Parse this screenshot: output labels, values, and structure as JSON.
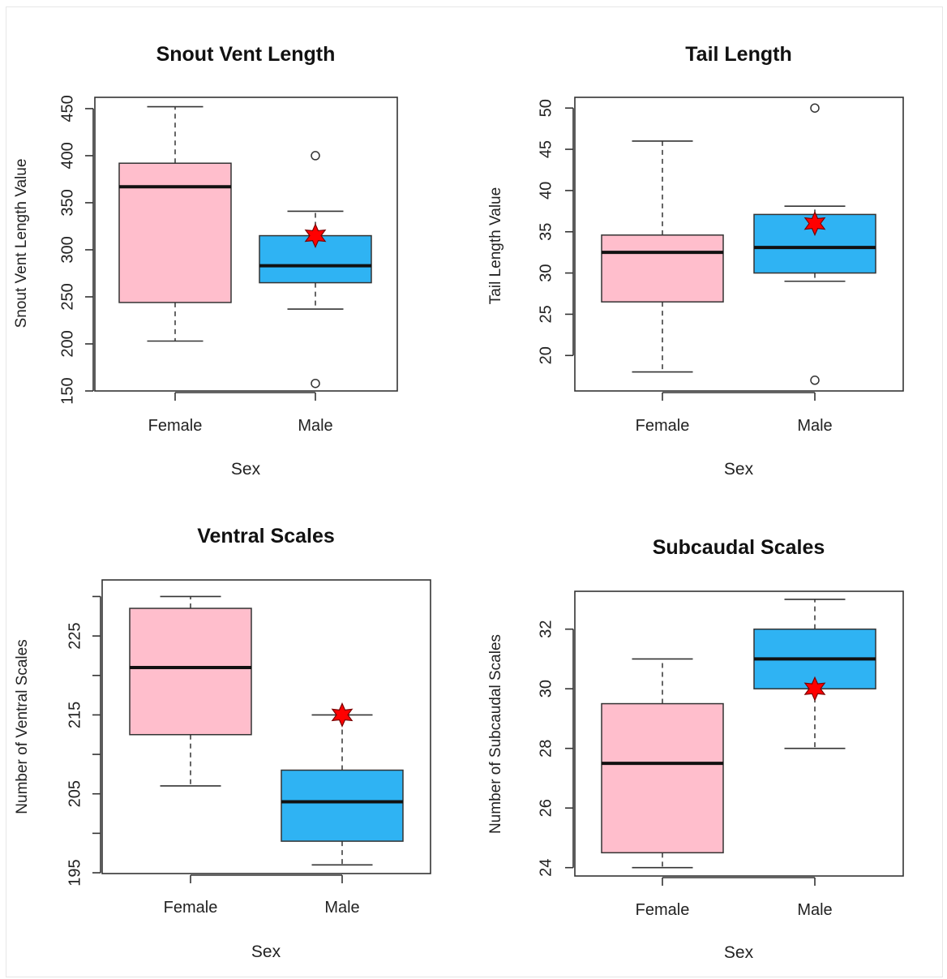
{
  "colors": {
    "female_box": "#FFBECC",
    "male_box": "#2FB3F3",
    "mean_star": "#FF0000"
  },
  "chart_data": [
    {
      "type": "box",
      "title": "Snout Vent Length",
      "xlabel": "Sex",
      "ylabel": "Snout Vent Length Value",
      "categories": [
        "Female",
        "Male"
      ],
      "ylim": [
        150,
        462
      ],
      "yticks": [
        150,
        200,
        250,
        300,
        350,
        400,
        450
      ],
      "boxes": [
        {
          "category": "Female",
          "whisker_low": 203,
          "q1": 244,
          "median": 367,
          "q3": 392,
          "whisker_high": 452,
          "outliers": [],
          "mean": null
        },
        {
          "category": "Male",
          "whisker_low": 237,
          "q1": 265,
          "median": 283,
          "q3": 315,
          "whisker_high": 341,
          "outliers": [
            158,
            400
          ],
          "mean": 315
        }
      ]
    },
    {
      "type": "box",
      "title": "Tail Length",
      "xlabel": "Sex",
      "ylabel": "Tail Length Value",
      "categories": [
        "Female",
        "Male"
      ],
      "ylim": [
        15.7,
        51.3
      ],
      "yticks": [
        20,
        25,
        30,
        35,
        40,
        45,
        50
      ],
      "boxes": [
        {
          "category": "Female",
          "whisker_low": 18,
          "q1": 26.5,
          "median": 32.5,
          "q3": 34.6,
          "whisker_high": 46,
          "outliers": [],
          "mean": null
        },
        {
          "category": "Male",
          "whisker_low": 29,
          "q1": 30,
          "median": 33.1,
          "q3": 37.1,
          "whisker_high": 38.1,
          "outliers": [
            17,
            50
          ],
          "mean": 36
        }
      ]
    },
    {
      "type": "box",
      "title": "Ventral Scales",
      "xlabel": "Sex",
      "ylabel": "Number of Ventral Scales",
      "categories": [
        "Female",
        "Male"
      ],
      "ylim": [
        194.9,
        232.1
      ],
      "yticks": [
        195,
        205,
        215,
        225
      ],
      "minor_yticks": [
        200,
        210,
        220,
        230
      ],
      "boxes": [
        {
          "category": "Female",
          "whisker_low": 206,
          "q1": 212.5,
          "median": 221,
          "q3": 228.5,
          "whisker_high": 230,
          "outliers": [],
          "mean": null
        },
        {
          "category": "Male",
          "whisker_low": 196,
          "q1": 199,
          "median": 204,
          "q3": 208,
          "whisker_high": 215,
          "outliers": [],
          "mean": 215
        }
      ]
    },
    {
      "type": "box",
      "title": "Subcaudal Scales",
      "xlabel": "Sex",
      "ylabel": "Number of Subcaudal Scales",
      "categories": [
        "Female",
        "Male"
      ],
      "ylim": [
        23.72,
        33.27
      ],
      "yticks": [
        24,
        26,
        28,
        30,
        32
      ],
      "boxes": [
        {
          "category": "Female",
          "whisker_low": 24,
          "q1": 24.5,
          "median": 27.5,
          "q3": 29.5,
          "whisker_high": 31,
          "outliers": [],
          "mean": null
        },
        {
          "category": "Male",
          "whisker_low": 28,
          "q1": 30,
          "median": 31,
          "q3": 32,
          "whisker_high": 33,
          "outliers": [],
          "mean": 30
        }
      ]
    }
  ]
}
